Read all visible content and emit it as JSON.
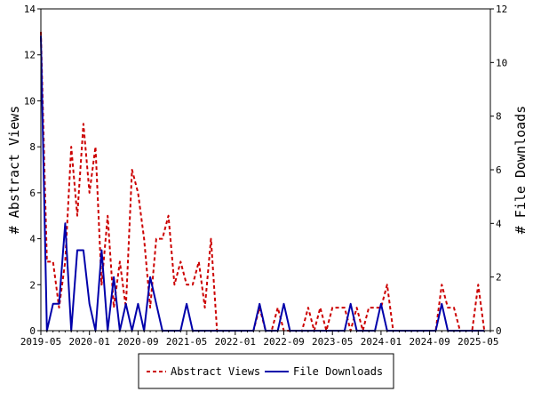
{
  "chart_data": {
    "type": "line",
    "ylabel_left": "# Abstract Views",
    "ylabel_right": "# File Downloads",
    "xlabel": "",
    "title": "",
    "ylim_left": [
      0,
      14
    ],
    "ylim_right": [
      0,
      12
    ],
    "yticks_left": [
      0,
      2,
      4,
      6,
      8,
      10,
      12,
      14
    ],
    "yticks_right": [
      0,
      2,
      4,
      6,
      8,
      10,
      12
    ],
    "xlim_months": [
      "2019-05",
      "2025-07"
    ],
    "xtick_labels": [
      "2019-05",
      "2020-01",
      "2020-09",
      "2021-05",
      "2022-01",
      "2022-09",
      "2023-05",
      "2024-01",
      "2024-09",
      "2025-05"
    ],
    "grid": false,
    "legend_position": "bottom",
    "series": [
      {
        "name": "Abstract Views",
        "axis": "left",
        "color": "#cc0000",
        "style": "dashed",
        "x": [
          "2019-05",
          "2019-06",
          "2019-07",
          "2019-08",
          "2019-09",
          "2019-10",
          "2019-11",
          "2019-12",
          "2020-01",
          "2020-02",
          "2020-03",
          "2020-04",
          "2020-05",
          "2020-06",
          "2020-07",
          "2020-08",
          "2020-09",
          "2020-10",
          "2020-11",
          "2020-12",
          "2021-01",
          "2021-02",
          "2021-03",
          "2021-04",
          "2021-05",
          "2021-06",
          "2021-07",
          "2021-08",
          "2021-09",
          "2021-10",
          "2021-11",
          "2021-12",
          "2022-01",
          "2022-02",
          "2022-03",
          "2022-04",
          "2022-05",
          "2022-06",
          "2022-07",
          "2022-08",
          "2022-09",
          "2022-10",
          "2022-11",
          "2022-12",
          "2023-01",
          "2023-02",
          "2023-03",
          "2023-04",
          "2023-05",
          "2023-06",
          "2023-07",
          "2023-08",
          "2023-09",
          "2023-10",
          "2023-11",
          "2023-12",
          "2024-01",
          "2024-02",
          "2024-03",
          "2024-04",
          "2024-05",
          "2024-06",
          "2024-07",
          "2024-08",
          "2024-09",
          "2024-10",
          "2024-11",
          "2024-12",
          "2025-01",
          "2025-02",
          "2025-03",
          "2025-04",
          "2025-05",
          "2025-06"
        ],
        "values": [
          13,
          3,
          3,
          1,
          3,
          8,
          5,
          9,
          6,
          8,
          2,
          5,
          1,
          3,
          1,
          7,
          6,
          4,
          1,
          4,
          4,
          5,
          2,
          3,
          2,
          2,
          3,
          1,
          4,
          0,
          0,
          0,
          0,
          0,
          0,
          0,
          1,
          0,
          0,
          1,
          0,
          0,
          0,
          0,
          1,
          0,
          1,
          0,
          1,
          1,
          1,
          0,
          1,
          0,
          1,
          1,
          1,
          2,
          0,
          0,
          0,
          0,
          0,
          0,
          0,
          0,
          2,
          1,
          1,
          0,
          0,
          0,
          2,
          0
        ]
      },
      {
        "name": "File Downloads",
        "axis": "right",
        "color": "#0000aa",
        "style": "solid",
        "x": [
          "2019-05",
          "2019-06",
          "2019-07",
          "2019-08",
          "2019-09",
          "2019-10",
          "2019-11",
          "2019-12",
          "2020-01",
          "2020-02",
          "2020-03",
          "2020-04",
          "2020-05",
          "2020-06",
          "2020-07",
          "2020-08",
          "2020-09",
          "2020-10",
          "2020-11",
          "2020-12",
          "2021-01",
          "2021-02",
          "2021-03",
          "2021-04",
          "2021-05",
          "2021-06",
          "2021-07",
          "2021-08",
          "2021-09",
          "2021-10",
          "2021-11",
          "2021-12",
          "2022-01",
          "2022-02",
          "2022-03",
          "2022-04",
          "2022-05",
          "2022-06",
          "2022-07",
          "2022-08",
          "2022-09",
          "2022-10",
          "2022-11",
          "2022-12",
          "2023-01",
          "2023-02",
          "2023-03",
          "2023-04",
          "2023-05",
          "2023-06",
          "2023-07",
          "2023-08",
          "2023-09",
          "2023-10",
          "2023-11",
          "2023-12",
          "2024-01",
          "2024-02",
          "2024-03",
          "2024-04",
          "2024-05",
          "2024-06",
          "2024-07",
          "2024-08",
          "2024-09",
          "2024-10",
          "2024-11",
          "2024-12",
          "2025-01",
          "2025-02",
          "2025-03",
          "2025-04",
          "2025-05",
          "2025-06"
        ],
        "values": [
          11,
          0,
          1,
          1,
          4,
          0,
          3,
          3,
          1,
          0,
          3,
          0,
          2,
          0,
          1,
          0,
          1,
          0,
          2,
          1,
          0,
          0,
          0,
          0,
          1,
          0,
          0,
          0,
          0,
          0,
          0,
          0,
          0,
          0,
          0,
          0,
          1,
          0,
          0,
          0,
          1,
          0,
          0,
          0,
          0,
          0,
          0,
          0,
          0,
          0,
          0,
          1,
          0,
          0,
          0,
          0,
          1,
          0,
          0,
          0,
          0,
          0,
          0,
          0,
          0,
          0,
          1,
          0,
          0,
          0,
          0,
          0,
          0,
          0
        ]
      }
    ]
  }
}
